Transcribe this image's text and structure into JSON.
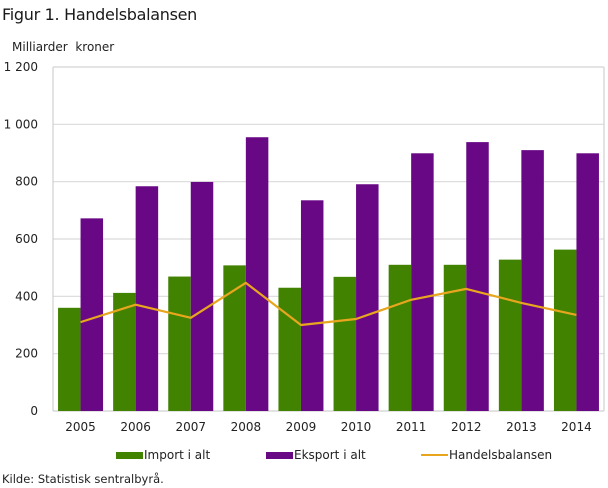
{
  "chart_data": {
    "type": "bar",
    "title": "Figur 1. Handelsbalansen",
    "ylabel": "Milliarder  kroner",
    "xlabel": "",
    "ylim": [
      0,
      1200
    ],
    "yticks": [
      0,
      200,
      400,
      600,
      800,
      1000,
      1200
    ],
    "ytick_labels": [
      "0",
      "200",
      "400",
      "600",
      "800",
      "1 000",
      "1 200"
    ],
    "grid": true,
    "categories": [
      "2005",
      "2006",
      "2007",
      "2008",
      "2009",
      "2010",
      "2011",
      "2012",
      "2013",
      "2014"
    ],
    "series": [
      {
        "name": "Import i alt",
        "kind": "bar",
        "color": "#418200",
        "values": [
          360,
          412,
          469,
          508,
          430,
          468,
          510,
          510,
          528,
          563
        ]
      },
      {
        "name": "Eksport i alt",
        "kind": "bar",
        "color": "#690885",
        "values": [
          672,
          784,
          799,
          955,
          735,
          791,
          899,
          938,
          910,
          899
        ]
      },
      {
        "name": "Handelsbalansen",
        "kind": "line",
        "color": "#E8A61E",
        "values": [
          310,
          371,
          325,
          447,
          300,
          321,
          388,
          426,
          377,
          335
        ]
      }
    ],
    "legend_position": "bottom",
    "source": "Kilde: Statistisk sentralbyrå."
  }
}
